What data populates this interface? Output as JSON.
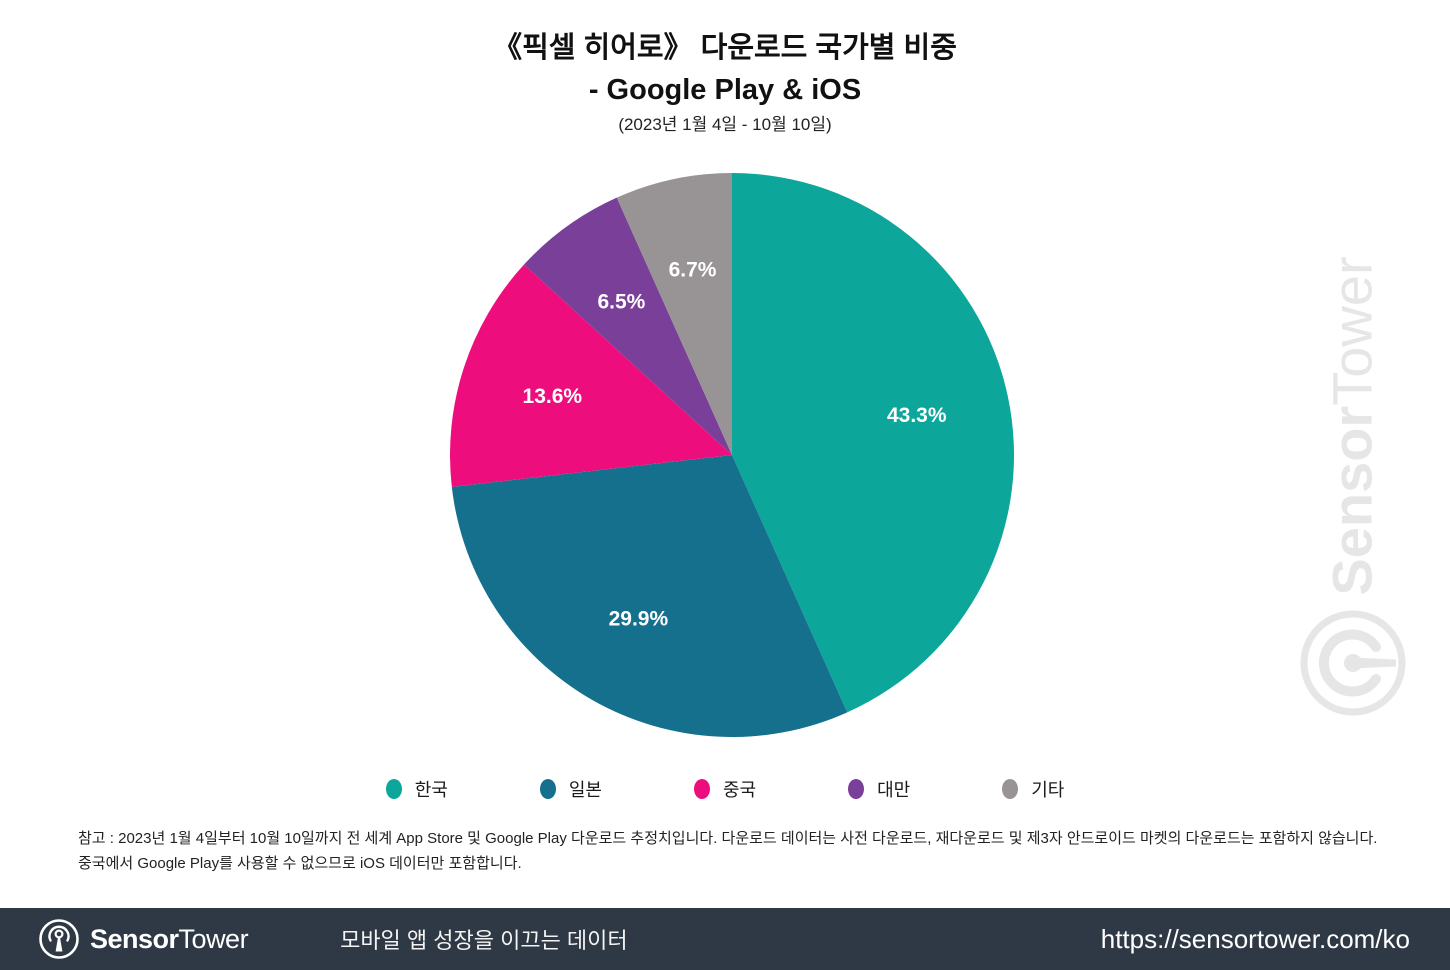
{
  "title": {
    "line1": "《픽셀 히어로》 다운로드 국가별 비중",
    "line2": "- Google Play & iOS",
    "subtitle": "(2023년 1월 4일 - 10월 10일)"
  },
  "chart_data": {
    "type": "pie",
    "categories": [
      "한국",
      "일본",
      "중국",
      "대만",
      "기타"
    ],
    "values": [
      43.3,
      29.9,
      13.6,
      6.5,
      6.7
    ],
    "labels": [
      "43.3%",
      "29.9%",
      "13.6%",
      "6.5%",
      "6.7%"
    ],
    "colors": [
      "#0CA69B",
      "#15708E",
      "#EE0D7D",
      "#7A3F98",
      "#989495"
    ],
    "start_angle_deg": 0,
    "direction": "clockwise",
    "label_color": "#ffffff",
    "label_radius_ratio": 0.67,
    "legend_position": "bottom"
  },
  "note": {
    "line1": "참고 : 2023년 1월 4일부터 10월 10일까지 전 세계 App Store 및 Google Play 다운로드 추정치입니다. 다운로드 데이터는 사전 다운로드, 재다운로드 및 제3자 안드로이드 마켓의 다운로드는 포함하지 않습니다.",
    "line2": "중국에서 Google Play를 사용할 수 없으므로 iOS 데이터만 포함합니다."
  },
  "watermark": {
    "brand_bold": "Sensor",
    "brand_regular": "Tower",
    "color": "#e6e6e6"
  },
  "footer": {
    "brand_bold": "Sensor",
    "brand_regular": "Tower",
    "tagline": "모바일 앱 성장을 이끄는 데이터",
    "url": "https://sensortower.com/ko",
    "bg_color": "#2F3945"
  }
}
